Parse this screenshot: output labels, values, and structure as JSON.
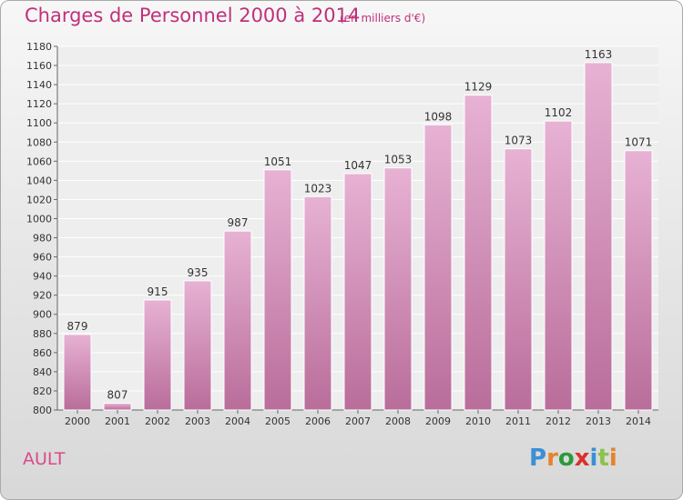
{
  "header": {
    "title": "Charges de Personnel 2000 à 2014",
    "subtitle": "(en milliers d'€)"
  },
  "footer": {
    "location": "AULT",
    "logo_letters": [
      "P",
      "r",
      "o",
      "x",
      "i",
      "t",
      "i"
    ],
    "logo_colors": [
      "#3b8fd6",
      "#e6832b",
      "#2a9a3c",
      "#d9312b",
      "#3b8fd6",
      "#8bc34a",
      "#e6832b"
    ]
  },
  "colors": {
    "bar_light": "#e7b2d4",
    "bar_dark": "#b96d9a",
    "accent": "#c0307a"
  },
  "chart_data": {
    "type": "bar",
    "title": "Charges de Personnel 2000 à 2014",
    "subtitle": "(en milliers d'€)",
    "categories": [
      "2000",
      "2001",
      "2002",
      "2003",
      "2004",
      "2005",
      "2006",
      "2007",
      "2008",
      "2009",
      "2010",
      "2011",
      "2012",
      "2013",
      "2014"
    ],
    "values": [
      879,
      807,
      915,
      935,
      987,
      1051,
      1023,
      1047,
      1053,
      1098,
      1129,
      1073,
      1102,
      1163,
      1071
    ],
    "ylim": [
      800,
      1180
    ],
    "yticks": [
      800,
      820,
      840,
      860,
      880,
      900,
      920,
      940,
      960,
      980,
      1000,
      1020,
      1040,
      1060,
      1080,
      1100,
      1120,
      1140,
      1160,
      1180
    ],
    "grid": true
  }
}
